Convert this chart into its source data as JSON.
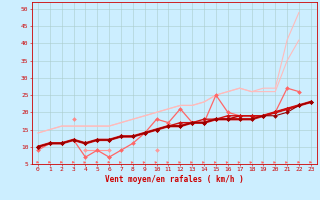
{
  "background_color": "#cceeff",
  "grid_color": "#aacccc",
  "xlabel": "Vent moyen/en rafales ( km/h )",
  "xlabel_color": "#cc0000",
  "xlabel_fontsize": 5.5,
  "tick_color": "#cc0000",
  "tick_fontsize": 4.5,
  "axis_color": "#cc0000",
  "xlim": [
    -0.5,
    23.5
  ],
  "ylim": [
    5,
    52
  ],
  "yticks": [
    5,
    10,
    15,
    20,
    25,
    30,
    35,
    40,
    45,
    50
  ],
  "xticks": [
    0,
    1,
    2,
    3,
    4,
    5,
    6,
    7,
    8,
    9,
    10,
    11,
    12,
    13,
    14,
    15,
    16,
    17,
    18,
    19,
    20,
    21,
    22,
    23
  ],
  "x": [
    0,
    1,
    2,
    3,
    4,
    5,
    6,
    7,
    8,
    9,
    10,
    11,
    12,
    13,
    14,
    15,
    16,
    17,
    18,
    19,
    20,
    21,
    22,
    23
  ],
  "series": [
    {
      "name": "light_pink_upper_bound",
      "color": "#ffbbbb",
      "lw": 0.8,
      "marker": null,
      "y": [
        14,
        15,
        16,
        16,
        16,
        16,
        16,
        17,
        18,
        19,
        20,
        21,
        22,
        22,
        23,
        25,
        26,
        27,
        26,
        27,
        27,
        41,
        49,
        null
      ]
    },
    {
      "name": "light_pink_lower_bound",
      "color": "#ffbbbb",
      "lw": 0.8,
      "marker": null,
      "y": [
        14,
        15,
        16,
        16,
        16,
        16,
        16,
        17,
        18,
        19,
        20,
        21,
        22,
        22,
        23,
        25,
        26,
        27,
        26,
        26,
        26,
        35,
        41,
        null
      ]
    },
    {
      "name": "medium_pink_zigzag",
      "color": "#ff8888",
      "lw": 0.8,
      "marker": "D",
      "markersize": 2,
      "y": [
        null,
        null,
        null,
        18,
        null,
        null,
        7,
        null,
        null,
        null,
        null,
        null,
        null,
        null,
        null,
        null,
        null,
        null,
        null,
        null,
        null,
        null,
        null,
        null
      ]
    },
    {
      "name": "medium_pink_low",
      "color": "#ff9999",
      "lw": 0.8,
      "marker": "D",
      "markersize": 2,
      "y": [
        null,
        null,
        null,
        null,
        9,
        9,
        9,
        null,
        null,
        null,
        9,
        null,
        null,
        null,
        null,
        null,
        null,
        null,
        null,
        null,
        null,
        null,
        null,
        null
      ]
    },
    {
      "name": "pink_main",
      "color": "#ff6666",
      "lw": 0.9,
      "marker": "D",
      "markersize": 2,
      "y": [
        9,
        11,
        11,
        12,
        7,
        9,
        7,
        9,
        11,
        14,
        18,
        17,
        21,
        17,
        17,
        25,
        20,
        19,
        19,
        19,
        20,
        27,
        26,
        null
      ]
    },
    {
      "name": "dark_red1",
      "color": "#dd2222",
      "lw": 1.8,
      "marker": "D",
      "markersize": 2,
      "y": [
        10,
        11,
        11,
        12,
        11,
        12,
        12,
        13,
        13,
        14,
        15,
        16,
        16,
        17,
        17,
        18,
        18,
        18,
        18,
        19,
        20,
        21,
        22,
        23
      ]
    },
    {
      "name": "dark_red2",
      "color": "#bb0000",
      "lw": 1.0,
      "marker": "D",
      "markersize": 2,
      "y": [
        10,
        11,
        11,
        12,
        11,
        12,
        12,
        13,
        13,
        14,
        15,
        16,
        16,
        17,
        17,
        18,
        18,
        19,
        19,
        19,
        20,
        21,
        22,
        23
      ]
    },
    {
      "name": "dark_red3",
      "color": "#cc1111",
      "lw": 1.0,
      "marker": "D",
      "markersize": 2,
      "y": [
        10,
        11,
        11,
        12,
        11,
        12,
        12,
        13,
        13,
        14,
        15,
        16,
        17,
        17,
        18,
        18,
        19,
        19,
        19,
        19,
        20,
        21,
        22,
        23
      ]
    },
    {
      "name": "dark_red4",
      "color": "#990000",
      "lw": 0.8,
      "marker": "D",
      "markersize": 2,
      "y": [
        10,
        11,
        11,
        12,
        11,
        12,
        12,
        13,
        13,
        14,
        15,
        16,
        16,
        17,
        17,
        18,
        18,
        18,
        18,
        19,
        19,
        20,
        22,
        23
      ]
    }
  ],
  "arrows": {
    "color": "#ff6666",
    "y_data": 5.5,
    "angles": [
      0,
      0,
      0,
      0,
      30,
      0,
      0,
      30,
      30,
      30,
      30,
      30,
      30,
      30,
      30,
      30,
      30,
      30,
      30,
      30,
      30,
      30,
      10,
      10
    ]
  }
}
